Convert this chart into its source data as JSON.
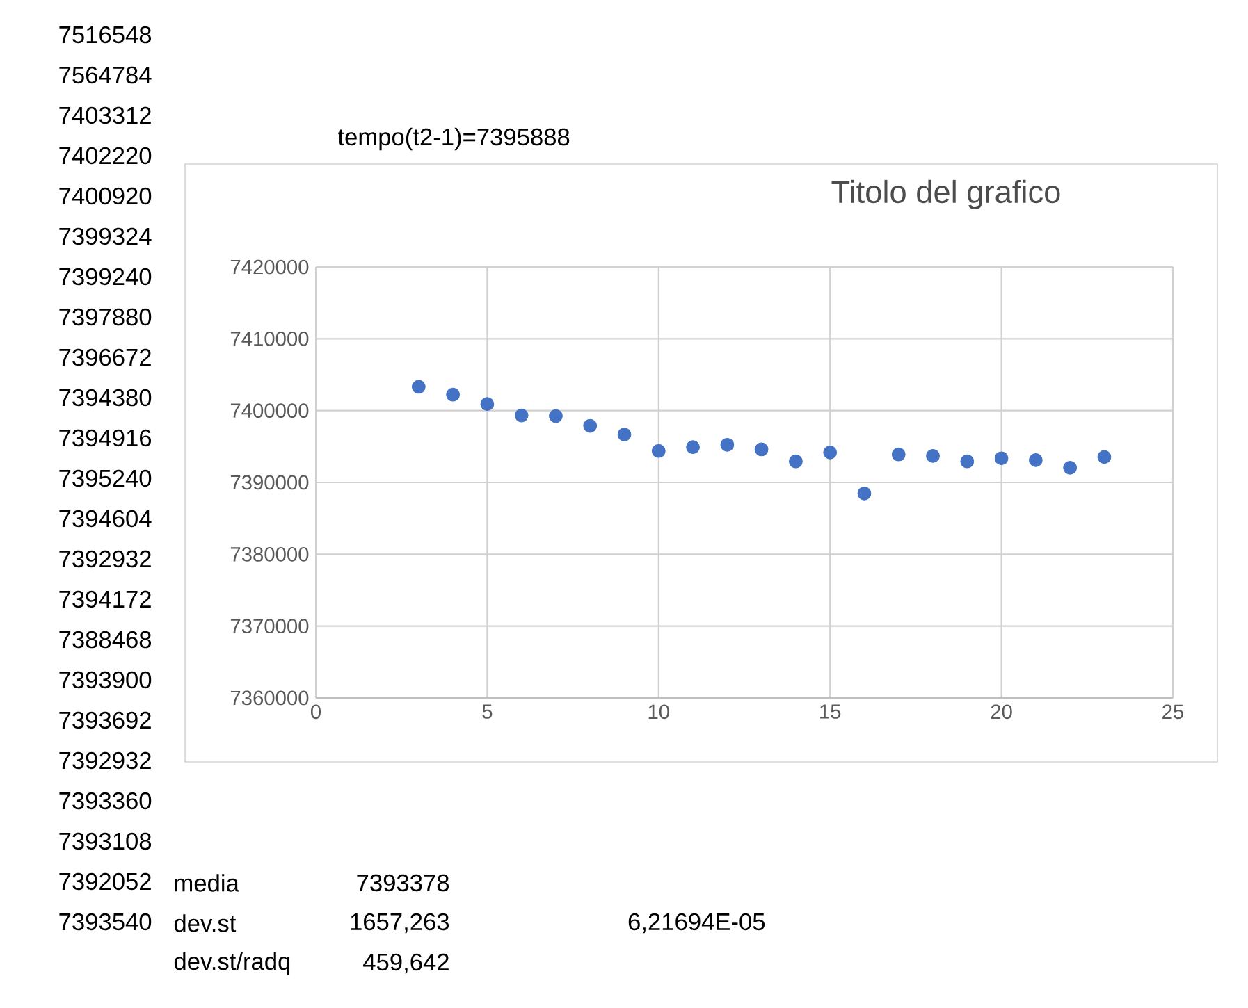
{
  "chart_data": {
    "type": "scatter",
    "title": "Titolo del grafico",
    "x": [
      3,
      4,
      5,
      6,
      7,
      8,
      9,
      10,
      11,
      12,
      13,
      14,
      15,
      16,
      17,
      18,
      19,
      20,
      21,
      22,
      23
    ],
    "values": [
      7403312,
      7402220,
      7400920,
      7399324,
      7399240,
      7397880,
      7396672,
      7394380,
      7394916,
      7395240,
      7394604,
      7392932,
      7394172,
      7388468,
      7393900,
      7393692,
      7392932,
      7393360,
      7393108,
      7392052,
      7393540
    ],
    "color": "#4472c4",
    "marker": "circle",
    "grid": true,
    "xlim": [
      0,
      25
    ],
    "xticks": [
      0,
      5,
      10,
      15,
      20,
      25
    ],
    "ylim": [
      7360000,
      7420000
    ],
    "yticks": [
      7360000,
      7370000,
      7380000,
      7390000,
      7400000,
      7410000,
      7420000
    ],
    "annotations": [
      "7516548",
      "7564784",
      "7403312",
      "7402220",
      "7400920",
      "7399324",
      "7399240",
      "7397880",
      "7396672",
      "7394380",
      "7394916",
      "7395240",
      "7394604",
      "7392932",
      "7394172",
      "7388468",
      "7393900",
      "7393692",
      "7392932",
      "7393360",
      "7393108",
      "7392052",
      "7393540",
      "tempo(t2-1)=7395888",
      "media",
      "7393378",
      "dev.st",
      "1657,263",
      "dev.st/radq",
      "459,642",
      "6,21694E-05"
    ]
  }
}
